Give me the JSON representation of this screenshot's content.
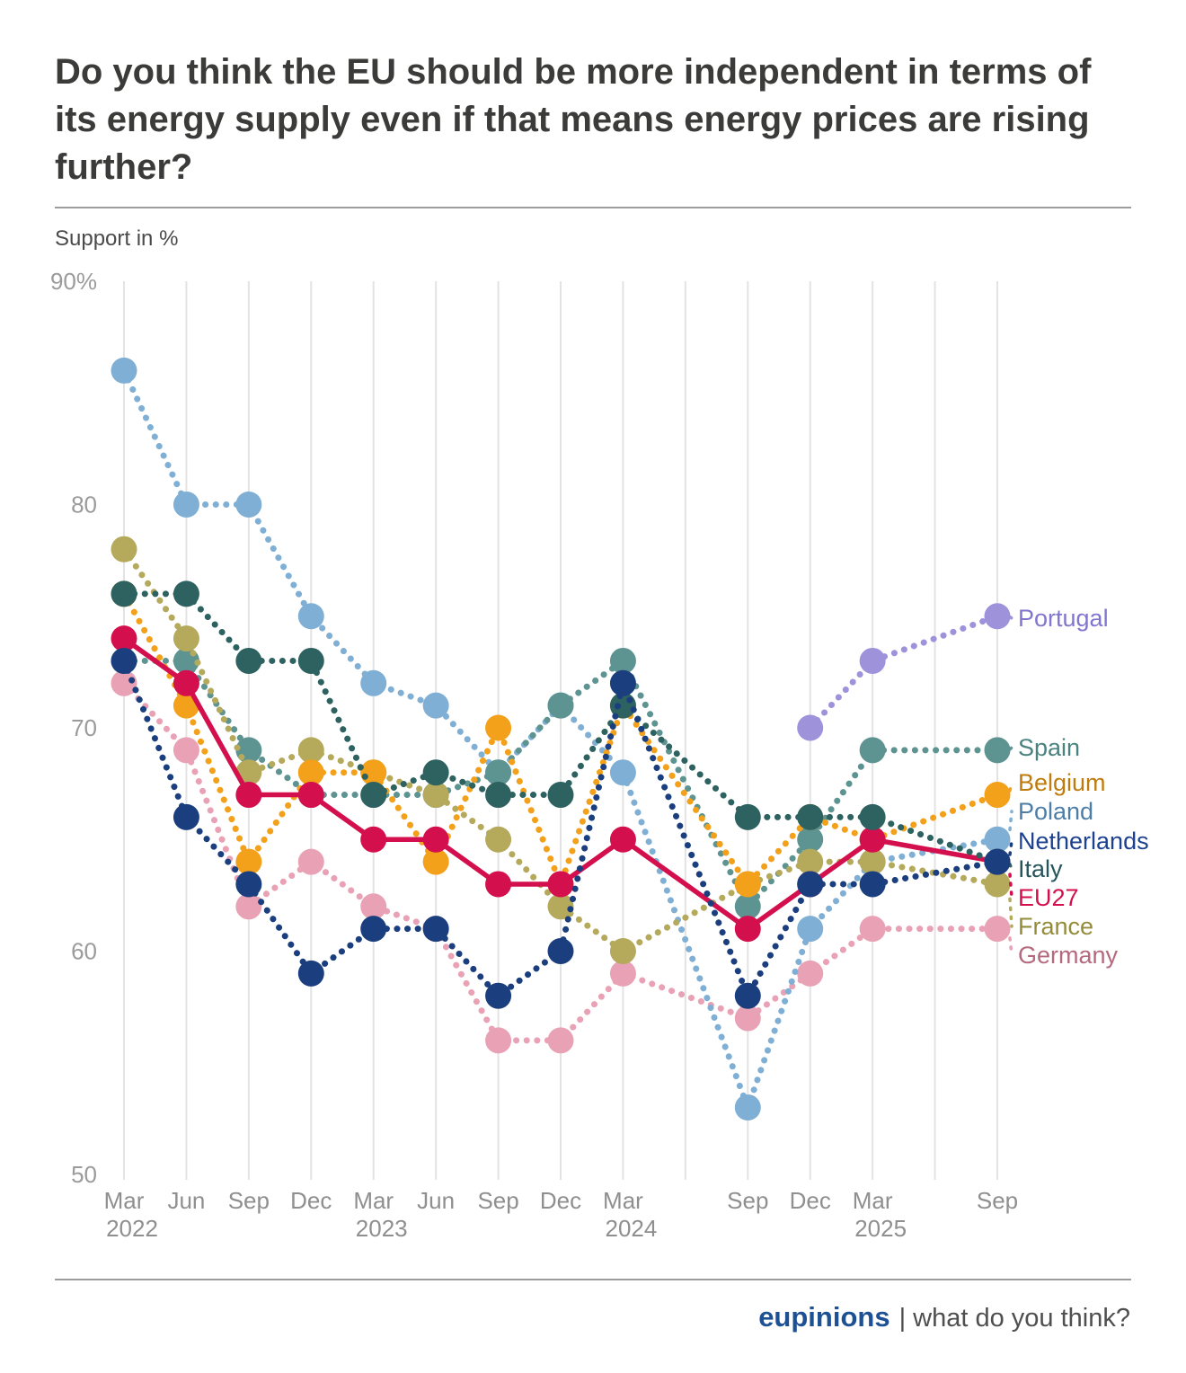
{
  "header": {
    "title": "Do you think the EU should be more independent in terms of its energy supply even if that means energy prices are rising further?",
    "subtitle": "Support in %"
  },
  "footer": {
    "brand": "eupinions",
    "tagline": "| what do you think?"
  },
  "chart_data": {
    "type": "line",
    "title": "Do you think the EU should be more independent in terms of its energy supply even if that means energy prices are rising further?",
    "ylabel": "Support in %",
    "ylim": [
      50,
      90
    ],
    "grid": "vertical-only",
    "legend_position": "right-of-line-ends",
    "x_categories": [
      {
        "month": "Mar",
        "year": "2022"
      },
      {
        "month": "Jun",
        "year": ""
      },
      {
        "month": "Sep",
        "year": ""
      },
      {
        "month": "Dec",
        "year": ""
      },
      {
        "month": "Mar",
        "year": "2023"
      },
      {
        "month": "Jun",
        "year": ""
      },
      {
        "month": "Sep",
        "year": ""
      },
      {
        "month": "Dec",
        "year": ""
      },
      {
        "month": "Mar",
        "year": "2024"
      },
      {
        "month": "",
        "year": ""
      },
      {
        "month": "Sep",
        "year": ""
      },
      {
        "month": "Dec",
        "year": ""
      },
      {
        "month": "Mar",
        "year": "2025"
      },
      {
        "month": "",
        "year": ""
      },
      {
        "month": "Sep",
        "year": ""
      }
    ],
    "y_ticks": [
      {
        "value": 90,
        "label": "90%"
      },
      {
        "value": 80,
        "label": "80"
      },
      {
        "value": 70,
        "label": "70"
      },
      {
        "value": 60,
        "label": "60"
      },
      {
        "value": 50,
        "label": "50"
      }
    ],
    "series": [
      {
        "name": "Germany",
        "color": "#e9a2b5",
        "label_color": "#b5697f",
        "line_style": "dotted",
        "values": [
          72,
          69,
          62,
          64,
          62,
          61,
          56,
          56,
          59,
          null,
          57,
          59,
          61,
          null,
          61
        ]
      },
      {
        "name": "Poland",
        "color": "#7fafd4",
        "label_color": "#4d7ea8",
        "line_style": "dotted",
        "values": [
          86,
          80,
          80,
          75,
          72,
          71,
          68,
          71,
          68,
          null,
          53,
          61,
          64,
          null,
          65
        ]
      },
      {
        "name": "Spain",
        "color": "#5d9390",
        "label_color": "#49827f",
        "line_style": "dotted",
        "values": [
          73,
          73,
          69,
          67,
          67,
          67,
          68,
          71,
          73,
          null,
          62,
          65,
          69,
          null,
          69
        ]
      },
      {
        "name": "France",
        "color": "#b5a95c",
        "label_color": "#958c3a",
        "line_style": "dotted",
        "values": [
          78,
          74,
          68,
          69,
          68,
          67,
          65,
          62,
          60,
          null,
          63,
          64,
          64,
          null,
          63
        ]
      },
      {
        "name": "Belgium",
        "color": "#f3a01a",
        "label_color": "#bf7c0e",
        "line_style": "dotted",
        "values": [
          76,
          71,
          64,
          68,
          68,
          64,
          70,
          63,
          71,
          null,
          63,
          66,
          65,
          null,
          67
        ]
      },
      {
        "name": "EU27",
        "color": "#d40f4d",
        "label_color": "#d40f4d",
        "line_style": "solid",
        "values": [
          74,
          72,
          67,
          67,
          65,
          65,
          63,
          63,
          65,
          null,
          61,
          63,
          65,
          null,
          64
        ]
      },
      {
        "name": "Italy",
        "color": "#2d6260",
        "label_color": "#26565c",
        "line_style": "dotted",
        "values": [
          76,
          76,
          73,
          73,
          67,
          68,
          67,
          67,
          71,
          null,
          66,
          66,
          66,
          null,
          64
        ]
      },
      {
        "name": "Netherlands",
        "color": "#1b3f7e",
        "label_color": "#1d4191",
        "line_style": "dotted",
        "values": [
          73,
          66,
          63,
          59,
          61,
          61,
          58,
          60,
          72,
          null,
          58,
          63,
          63,
          null,
          64
        ]
      },
      {
        "name": "Portugal",
        "color": "#9e92da",
        "label_color": "#8275cf",
        "line_style": "dotted",
        "values": [
          null,
          null,
          null,
          null,
          null,
          null,
          null,
          null,
          null,
          null,
          null,
          70,
          73,
          null,
          75
        ]
      }
    ]
  }
}
